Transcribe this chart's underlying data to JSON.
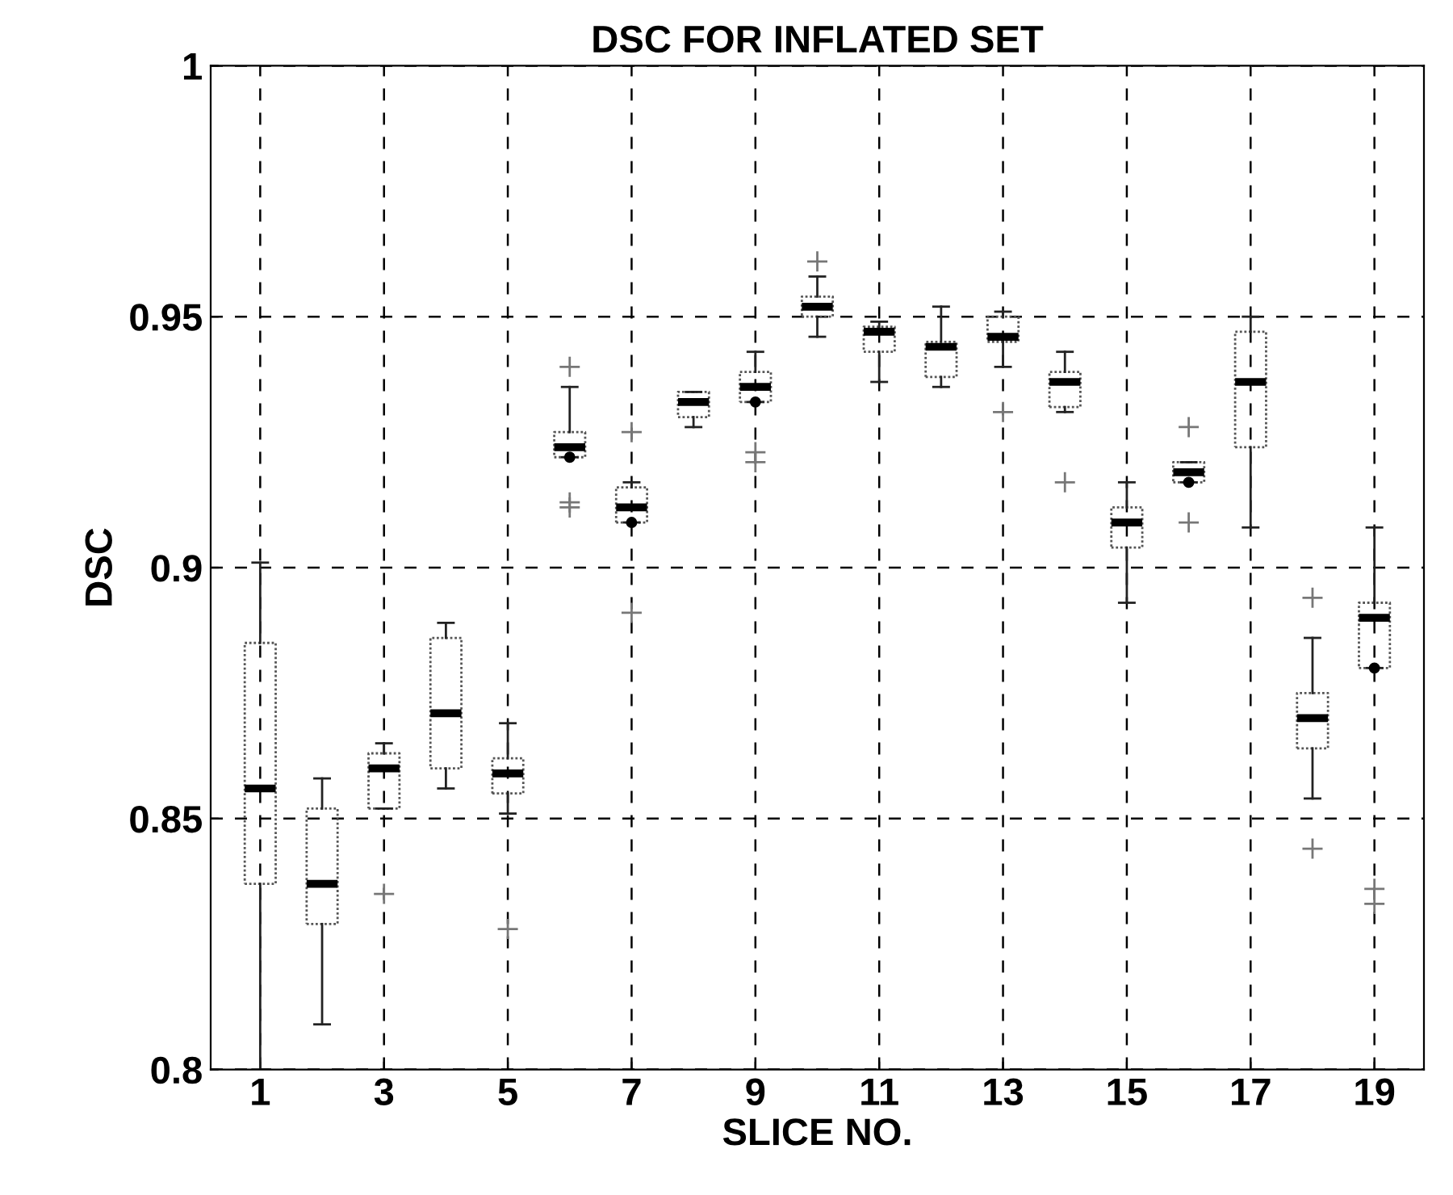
{
  "chart_data": {
    "type": "box",
    "title": "DSC FOR INFLATED SET",
    "xlabel": "SLICE NO.",
    "ylabel": "DSC",
    "categories": [
      "1",
      null,
      "3",
      null,
      "5",
      null,
      "7",
      null,
      "9",
      null,
      "11",
      null,
      "13",
      null,
      "15",
      null,
      "17",
      null,
      "19"
    ],
    "ylim": [
      0.8,
      1
    ],
    "yticks": [
      0.8,
      0.85,
      0.9,
      0.95,
      1
    ],
    "grid": true,
    "legend": false,
    "boxes": [
      {
        "low": 0.8,
        "q1": 0.837,
        "median": 0.856,
        "q3": 0.885,
        "high": 0.901
      },
      {
        "low": 0.809,
        "q1": 0.829,
        "median": 0.837,
        "q3": 0.852,
        "high": 0.858
      },
      {
        "low": 0.852,
        "q1": 0.852,
        "median": 0.86,
        "q3": 0.863,
        "high": 0.865,
        "outliers": [
          0.835
        ]
      },
      {
        "low": 0.856,
        "q1": 0.86,
        "median": 0.871,
        "q3": 0.886,
        "high": 0.889
      },
      {
        "low": 0.851,
        "q1": 0.855,
        "median": 0.859,
        "q3": 0.862,
        "high": 0.869,
        "outliers": [
          0.828
        ]
      },
      {
        "low": 0.922,
        "q1": 0.922,
        "median": 0.924,
        "q3": 0.927,
        "high": 0.936,
        "mean": 0.922,
        "outliers": [
          0.94,
          0.913,
          0.912
        ]
      },
      {
        "low": 0.909,
        "q1": 0.909,
        "median": 0.912,
        "q3": 0.916,
        "high": 0.917,
        "mean": 0.909,
        "outliers": [
          0.927,
          0.891
        ]
      },
      {
        "low": 0.928,
        "q1": 0.93,
        "median": 0.933,
        "q3": 0.935,
        "high": 0.935
      },
      {
        "low": 0.933,
        "q1": 0.933,
        "median": 0.936,
        "q3": 0.939,
        "high": 0.943,
        "mean": 0.933,
        "outliers": [
          0.923,
          0.921
        ]
      },
      {
        "low": 0.946,
        "q1": 0.95,
        "median": 0.952,
        "q3": 0.954,
        "high": 0.958,
        "outliers": [
          0.961
        ]
      },
      {
        "low": 0.937,
        "q1": 0.943,
        "median": 0.947,
        "q3": 0.948,
        "high": 0.949
      },
      {
        "low": 0.936,
        "q1": 0.938,
        "median": 0.944,
        "q3": 0.945,
        "high": 0.952
      },
      {
        "low": 0.94,
        "q1": 0.945,
        "median": 0.946,
        "q3": 0.95,
        "high": 0.951,
        "outliers": [
          0.931
        ]
      },
      {
        "low": 0.931,
        "q1": 0.932,
        "median": 0.937,
        "q3": 0.939,
        "high": 0.943,
        "outliers": [
          0.917
        ]
      },
      {
        "low": 0.893,
        "q1": 0.904,
        "median": 0.909,
        "q3": 0.912,
        "high": 0.917
      },
      {
        "low": 0.917,
        "q1": 0.917,
        "median": 0.919,
        "q3": 0.921,
        "high": 0.921,
        "mean": 0.917,
        "outliers": [
          0.928,
          0.909
        ]
      },
      {
        "low": 0.908,
        "q1": 0.924,
        "median": 0.937,
        "q3": 0.947,
        "high": 0.95
      },
      {
        "low": 0.854,
        "q1": 0.864,
        "median": 0.87,
        "q3": 0.875,
        "high": 0.886,
        "outliers": [
          0.894,
          0.844
        ]
      },
      {
        "low": 0.88,
        "q1": 0.88,
        "median": 0.89,
        "q3": 0.893,
        "high": 0.908,
        "mean": 0.88,
        "outliers": [
          0.836,
          0.833
        ]
      }
    ]
  }
}
